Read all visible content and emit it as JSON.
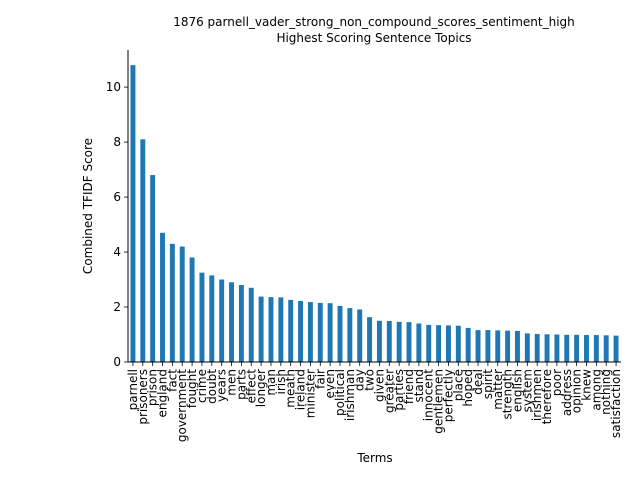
{
  "chart_data": {
    "type": "bar",
    "title": "1876 parnell_vader_strong_non_compound_scores_sentiment_high",
    "subtitle": "Highest Scoring Sentence Topics",
    "xlabel": "Terms",
    "ylabel": "Combined TFIDF Score",
    "ylim": [
      0,
      11.35
    ],
    "yticks": [
      0,
      2,
      4,
      6,
      8,
      10
    ],
    "grid": false,
    "color": "#1f77b4",
    "categories": [
      "parnell",
      "prisoners",
      "prison",
      "england",
      "fact",
      "government",
      "fought",
      "crime",
      "doubt",
      "years",
      "men",
      "parts",
      "effect",
      "longer",
      "man",
      "irish",
      "meath",
      "ireland",
      "minister",
      "fair",
      "even",
      "political",
      "irishman",
      "day",
      "two",
      "given",
      "greater",
      "parties",
      "friend",
      "stand",
      "innocent",
      "gentlemen",
      "perfectly",
      "place",
      "hoped",
      "deal",
      "spirit",
      "matter",
      "strength",
      "english",
      "system",
      "irishmen",
      "therefore",
      "poor",
      "address",
      "opinion",
      "knew",
      "among",
      "nothing",
      "satisfaction"
    ],
    "values": [
      10.8,
      8.1,
      6.8,
      4.7,
      4.3,
      4.2,
      3.8,
      3.25,
      3.15,
      3.0,
      2.9,
      2.8,
      2.7,
      2.38,
      2.36,
      2.35,
      2.26,
      2.22,
      2.18,
      2.15,
      2.14,
      2.04,
      1.96,
      1.91,
      1.63,
      1.5,
      1.49,
      1.46,
      1.45,
      1.4,
      1.35,
      1.34,
      1.33,
      1.32,
      1.24,
      1.16,
      1.16,
      1.15,
      1.14,
      1.13,
      1.04,
      1.02,
      1.01,
      1.0,
      0.99,
      0.99,
      0.98,
      0.98,
      0.97,
      0.96
    ]
  }
}
